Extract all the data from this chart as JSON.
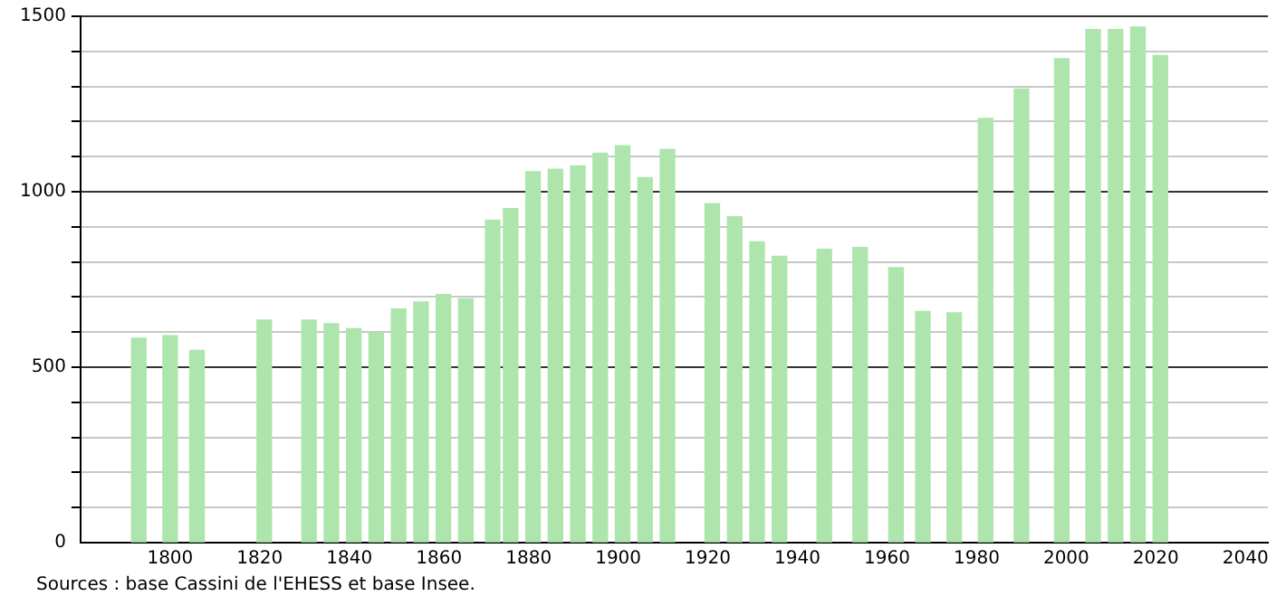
{
  "chart_data": {
    "type": "bar",
    "x": [
      1793,
      1800,
      1806,
      1821,
      1831,
      1836,
      1841,
      1846,
      1851,
      1856,
      1861,
      1866,
      1872,
      1876,
      1881,
      1886,
      1891,
      1896,
      1901,
      1906,
      1911,
      1921,
      1926,
      1931,
      1936,
      1946,
      1954,
      1962,
      1968,
      1975,
      1982,
      1990,
      1999,
      2006,
      2011,
      2016,
      2021
    ],
    "values": [
      583,
      590,
      548,
      634,
      634,
      624,
      610,
      598,
      666,
      686,
      707,
      695,
      919,
      952,
      1057,
      1064,
      1074,
      1110,
      1131,
      1040,
      1121,
      966,
      929,
      857,
      816,
      836,
      841,
      784,
      659,
      655,
      1209,
      1293,
      1379,
      1462,
      1462,
      1469,
      1388
    ],
    "color": "#ade5ad",
    "xlim": [
      1780,
      2045
    ],
    "xticks": [
      1800,
      1820,
      1840,
      1860,
      1880,
      1900,
      1920,
      1940,
      1960,
      1980,
      2000,
      2020,
      2040
    ],
    "ylim": [
      0,
      1500
    ],
    "yticks": [
      0,
      {
        "value": 100,
        "label": null
      },
      {
        "value": 200,
        "label": null
      },
      {
        "value": 300,
        "label": null
      },
      {
        "value": 400,
        "label": null
      },
      500,
      {
        "value": 600,
        "label": null
      },
      {
        "value": 700,
        "label": null
      },
      {
        "value": 800,
        "label": null
      },
      {
        "value": 900,
        "label": null
      },
      1000,
      {
        "value": 1100,
        "label": null
      },
      {
        "value": 1200,
        "label": null
      },
      {
        "value": 1300,
        "label": null
      },
      {
        "value": 1400,
        "label": null
      },
      1500
    ],
    "grid": "y",
    "annotations": [
      "Sources : base Cassini de l'EHESS et base Insee."
    ]
  }
}
